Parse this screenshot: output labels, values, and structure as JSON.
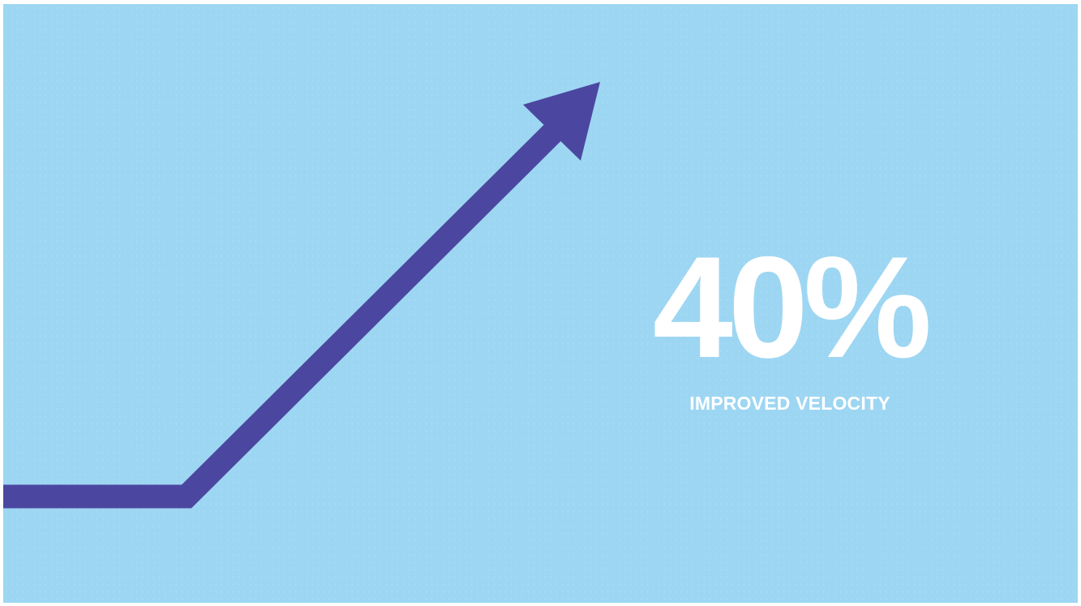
{
  "stat": {
    "value": "40%",
    "label": "IMPROVED VELOCITY"
  },
  "graphic": {
    "icon": "trend-up-arrow-icon",
    "arrow_color": "#4b47a0"
  },
  "colors": {
    "background": "#9dd6f2",
    "text": "#ffffff"
  }
}
